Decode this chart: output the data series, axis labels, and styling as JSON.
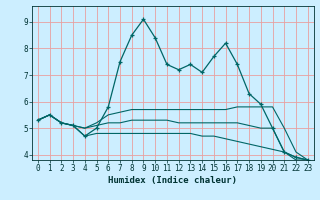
{
  "title": "",
  "xlabel": "Humidex (Indice chaleur)",
  "xlim": [
    -0.5,
    23.5
  ],
  "ylim": [
    3.8,
    9.6
  ],
  "yticks": [
    4,
    5,
    6,
    7,
    8,
    9
  ],
  "xticks": [
    0,
    1,
    2,
    3,
    4,
    5,
    6,
    7,
    8,
    9,
    10,
    11,
    12,
    13,
    14,
    15,
    16,
    17,
    18,
    19,
    20,
    21,
    22,
    23
  ],
  "bg_color": "#cceeff",
  "grid_color": "#e8a0a0",
  "line_color": "#006666",
  "lines": [
    [
      5.3,
      5.5,
      5.2,
      5.1,
      4.7,
      5.0,
      5.8,
      7.5,
      8.5,
      9.1,
      8.4,
      7.4,
      7.2,
      7.4,
      7.1,
      7.7,
      8.2,
      7.4,
      6.3,
      5.9,
      5.0,
      4.1,
      3.9,
      3.8
    ],
    [
      5.3,
      5.5,
      5.2,
      5.1,
      5.0,
      5.2,
      5.5,
      5.6,
      5.7,
      5.7,
      5.7,
      5.7,
      5.7,
      5.7,
      5.7,
      5.7,
      5.7,
      5.8,
      5.8,
      5.8,
      5.8,
      5.0,
      4.1,
      3.8
    ],
    [
      5.3,
      5.5,
      5.2,
      5.1,
      5.0,
      5.1,
      5.2,
      5.2,
      5.3,
      5.3,
      5.3,
      5.3,
      5.2,
      5.2,
      5.2,
      5.2,
      5.2,
      5.2,
      5.1,
      5.0,
      5.0,
      4.1,
      3.8,
      3.8
    ],
    [
      5.3,
      5.5,
      5.2,
      5.1,
      4.7,
      4.8,
      4.8,
      4.8,
      4.8,
      4.8,
      4.8,
      4.8,
      4.8,
      4.8,
      4.7,
      4.7,
      4.6,
      4.5,
      4.4,
      4.3,
      4.2,
      4.1,
      3.9,
      3.8
    ]
  ],
  "font_color": "#003333",
  "tick_fontsize": 5.5,
  "xlabel_fontsize": 6.5
}
